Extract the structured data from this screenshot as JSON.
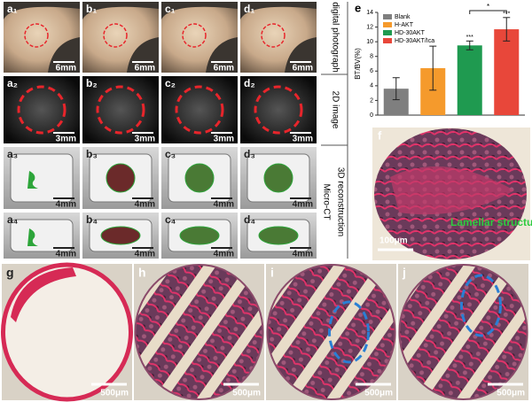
{
  "grid_rows": [
    {
      "cells": [
        {
          "label": "a₁",
          "scale": "6mm"
        },
        {
          "label": "b₁",
          "scale": "6mm"
        },
        {
          "label": "c₁",
          "scale": "6mm"
        },
        {
          "label": "d₁",
          "scale": "6mm"
        }
      ]
    },
    {
      "cells": [
        {
          "label": "a₂",
          "scale": "3mm"
        },
        {
          "label": "b₂",
          "scale": "3mm"
        },
        {
          "label": "c₂",
          "scale": "3mm"
        },
        {
          "label": "d₂",
          "scale": "3mm"
        }
      ]
    },
    {
      "cells": [
        {
          "label": "a₃",
          "scale": "4mm"
        },
        {
          "label": "b₃",
          "scale": "4mm"
        },
        {
          "label": "c₃",
          "scale": "4mm"
        },
        {
          "label": "d₃",
          "scale": "4mm"
        }
      ]
    },
    {
      "cells": [
        {
          "label": "a₄",
          "scale": "4mm"
        },
        {
          "label": "b₄",
          "scale": "4mm"
        },
        {
          "label": "c₄",
          "scale": "4mm"
        },
        {
          "label": "d₄",
          "scale": "4mm"
        }
      ]
    }
  ],
  "side_labels": [
    "digital photograph",
    "2D image",
    "3D reconstruction"
  ],
  "group_label": "Micro-CT",
  "panel_f": {
    "label": "f",
    "scale": "100μm",
    "annotation": "Lamellar structures"
  },
  "bottom_panels": [
    {
      "label": "g",
      "scale": "500μm"
    },
    {
      "label": "h",
      "scale": "500μm"
    },
    {
      "label": "i",
      "scale": "500μm"
    },
    {
      "label": "j",
      "scale": "500μm"
    }
  ],
  "chart_data": {
    "type": "bar",
    "label": "e",
    "ylabel": "BT/BV(%)",
    "series": [
      {
        "name": "Blank",
        "color": "#7f7f7f",
        "values": [
          3.6
        ],
        "errors": [
          1.5
        ]
      },
      {
        "name": "H-AKT",
        "color": "#f59a2c",
        "values": [
          6.4
        ],
        "errors": [
          3.0
        ]
      },
      {
        "name": "HD-30AKT",
        "color": "#1f9a50",
        "values": [
          9.5
        ],
        "errors": [
          0.6
        ],
        "marker": "***"
      },
      {
        "name": "HD-30AKT/Ica",
        "color": "#e8473a",
        "values": [
          11.7
        ],
        "errors": [
          1.6
        ],
        "marker": "***"
      }
    ],
    "comparison": "*",
    "ylim": [
      0,
      14
    ],
    "yticks": [
      0,
      2,
      4,
      6,
      8,
      10,
      12,
      14
    ]
  }
}
